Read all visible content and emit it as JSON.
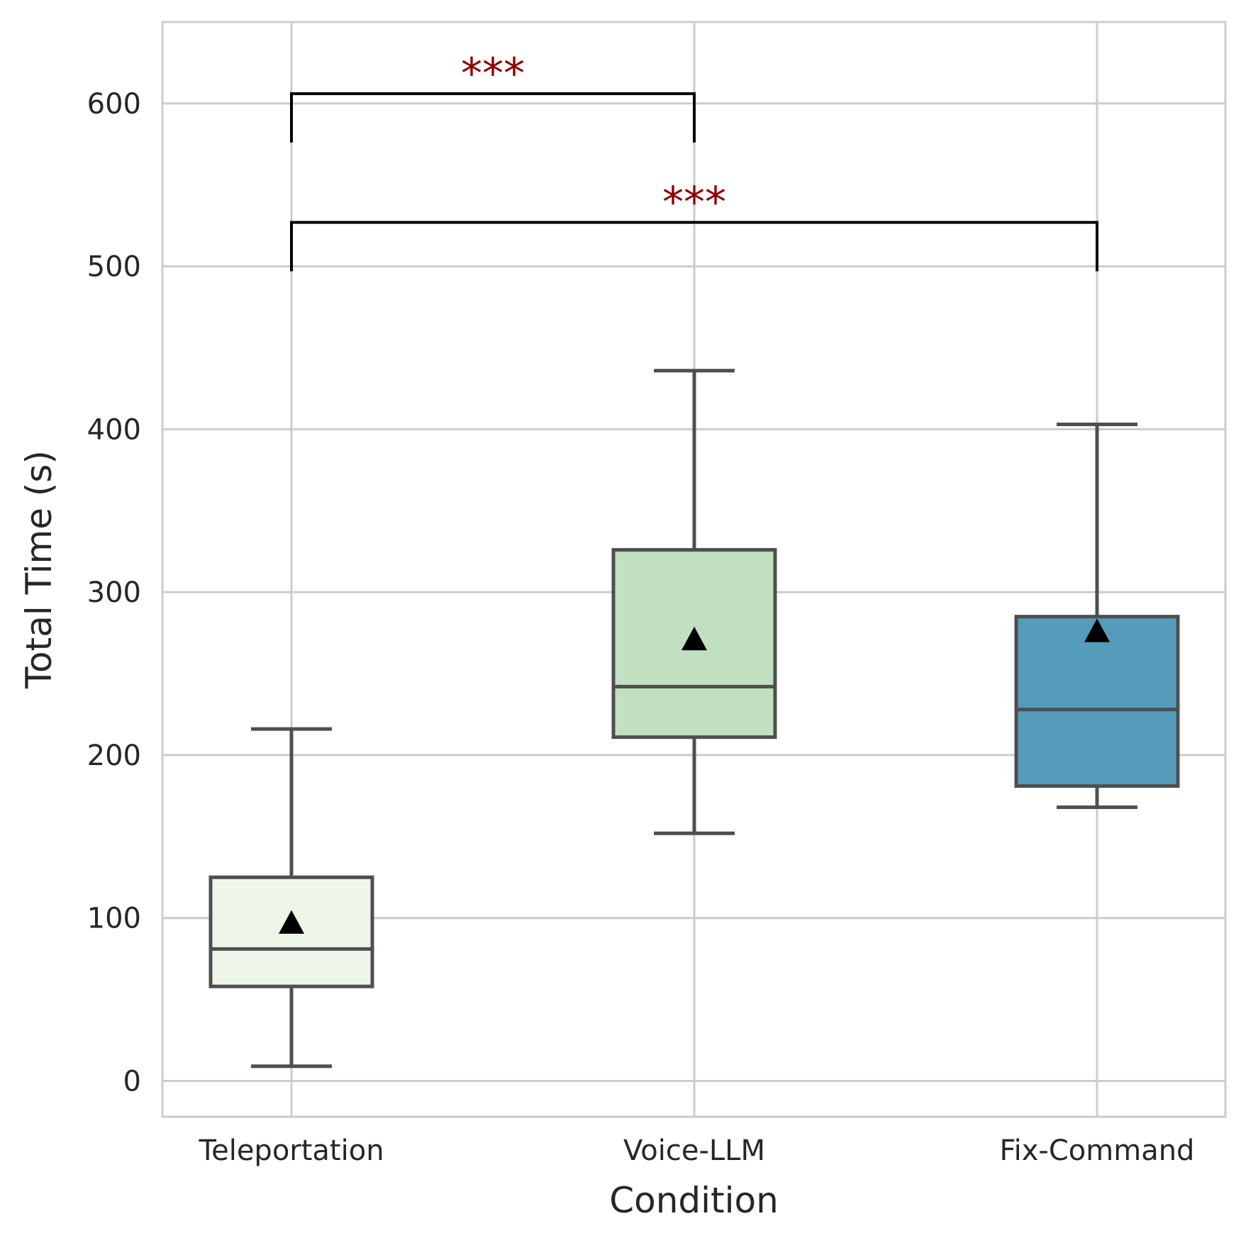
{
  "chart_data": {
    "type": "box",
    "title": "",
    "xlabel": "Condition",
    "ylabel": "Total Time (s)",
    "ylim": [
      -22,
      650
    ],
    "yticks": [
      0,
      100,
      200,
      300,
      400,
      500,
      600
    ],
    "grid": true,
    "categories": [
      "Teleportation",
      "Voice-LLM",
      "Fix-Command"
    ],
    "boxes": [
      {
        "name": "Teleportation",
        "color": "#eef5e9",
        "whisker_low": 9,
        "q1": 58,
        "median": 81,
        "q3": 125,
        "whisker_high": 216,
        "mean": 97
      },
      {
        "name": "Voice-LLM",
        "color": "#c1e0c1",
        "whisker_low": 152,
        "q1": 211,
        "median": 242,
        "q3": 326,
        "whisker_high": 436,
        "mean": 271
      },
      {
        "name": "Fix-Command",
        "color": "#559bbb",
        "whisker_low": 168,
        "q1": 181,
        "median": 228,
        "q3": 285,
        "whisker_high": 403,
        "mean": 276
      }
    ],
    "significance": [
      {
        "from": "Teleportation",
        "to": "Voice-LLM",
        "label": "***",
        "y": 606,
        "tick_bottom": 576
      },
      {
        "from": "Teleportation",
        "to": "Fix-Command",
        "label": "***",
        "y": 527,
        "tick_bottom": 497
      }
    ],
    "colors": {
      "box_edge": "#4f4f4f",
      "grid": "#cccccc",
      "frame": "#cccccc",
      "bracket": "#000000",
      "sig_text": "#8b0000",
      "mean_marker": "#000000"
    }
  }
}
